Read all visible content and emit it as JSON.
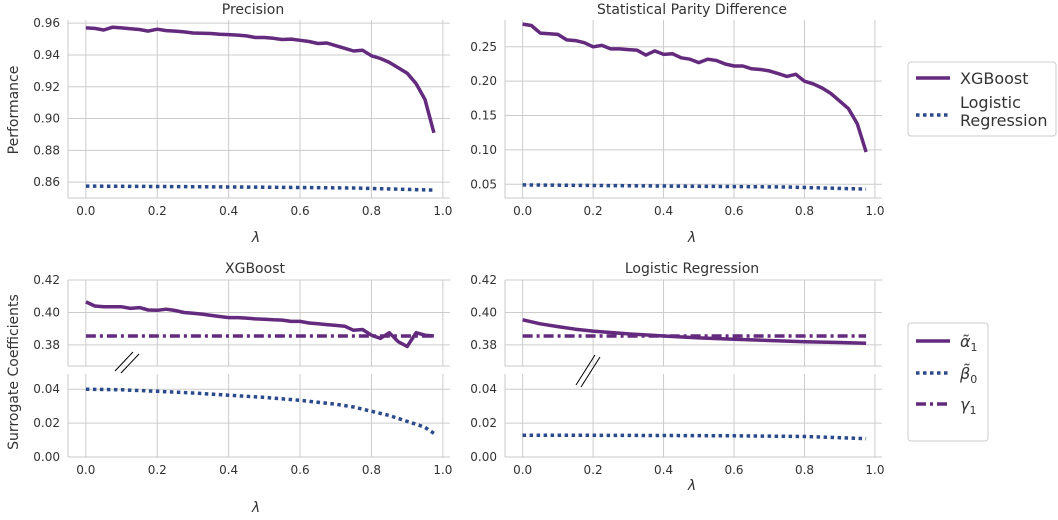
{
  "colors": {
    "xgb": "#632A7E",
    "lr": "#2B4A8C",
    "gamma": "#632A7E"
  },
  "legend_top": {
    "xgb": "XGBoost",
    "lr_line1": "Logistic",
    "lr_line2": "Regression"
  },
  "legend_bottom": {
    "alpha": "α̃",
    "alpha_sub": "1",
    "beta": "β̃",
    "beta_sub": "0",
    "gamma": "γ",
    "gamma_sub": "1"
  },
  "chart_data": [
    {
      "type": "line",
      "title": "Precision",
      "xlabel": "λ",
      "ylabel": "Performance",
      "xlim": [
        -0.05,
        1.02
      ],
      "ylim": [
        0.85,
        0.962
      ],
      "xticks": [
        "0.0",
        "0.2",
        "0.4",
        "0.6",
        "0.8",
        "1.0"
      ],
      "yticks": [
        "0.86",
        "0.88",
        "0.90",
        "0.92",
        "0.94",
        "0.96"
      ],
      "grid": true,
      "series": [
        {
          "name": "XGBoost",
          "x": [
            0,
            0.025,
            0.05,
            0.075,
            0.1,
            0.125,
            0.15,
            0.175,
            0.2,
            0.225,
            0.25,
            0.275,
            0.3,
            0.325,
            0.35,
            0.375,
            0.4,
            0.425,
            0.45,
            0.475,
            0.5,
            0.525,
            0.55,
            0.575,
            0.6,
            0.625,
            0.65,
            0.675,
            0.7,
            0.725,
            0.75,
            0.775,
            0.8,
            0.825,
            0.85,
            0.875,
            0.9,
            0.925,
            0.95,
            0.975
          ],
          "y": [
            0.957,
            0.9567,
            0.9557,
            0.9575,
            0.957,
            0.9565,
            0.956,
            0.955,
            0.9562,
            0.9553,
            0.955,
            0.9545,
            0.9538,
            0.9537,
            0.9535,
            0.953,
            0.9528,
            0.9525,
            0.952,
            0.951,
            0.951,
            0.9505,
            0.9497,
            0.95,
            0.9492,
            0.9485,
            0.9472,
            0.9475,
            0.9458,
            0.9442,
            0.9425,
            0.943,
            0.9395,
            0.9378,
            0.9353,
            0.932,
            0.9285,
            0.922,
            0.912,
            0.891
          ]
        },
        {
          "name": "Logistic Regression",
          "x": [
            0,
            0.25,
            0.5,
            0.75,
            0.975
          ],
          "y": [
            0.8575,
            0.8572,
            0.8568,
            0.8563,
            0.855
          ]
        }
      ]
    },
    {
      "type": "line",
      "title": "Statistical Parity Difference",
      "xlabel": "λ",
      "ylabel": "",
      "xlim": [
        -0.05,
        1.02
      ],
      "ylim": [
        0.03,
        0.289
      ],
      "xticks": [
        "0.0",
        "0.2",
        "0.4",
        "0.6",
        "0.8",
        "1.0"
      ],
      "yticks": [
        "0.05",
        "0.10",
        "0.15",
        "0.20",
        "0.25"
      ],
      "grid": true,
      "series": [
        {
          "name": "XGBoost",
          "x": [
            0,
            0.025,
            0.05,
            0.075,
            0.1,
            0.125,
            0.15,
            0.175,
            0.2,
            0.225,
            0.25,
            0.275,
            0.3,
            0.325,
            0.35,
            0.375,
            0.4,
            0.425,
            0.45,
            0.475,
            0.5,
            0.525,
            0.55,
            0.575,
            0.6,
            0.625,
            0.65,
            0.675,
            0.7,
            0.725,
            0.75,
            0.775,
            0.8,
            0.825,
            0.85,
            0.875,
            0.9,
            0.925,
            0.95,
            0.975
          ],
          "y": [
            0.283,
            0.281,
            0.27,
            0.269,
            0.268,
            0.26,
            0.259,
            0.256,
            0.25,
            0.252,
            0.247,
            0.247,
            0.246,
            0.245,
            0.238,
            0.244,
            0.239,
            0.24,
            0.234,
            0.232,
            0.227,
            0.232,
            0.23,
            0.225,
            0.222,
            0.222,
            0.218,
            0.217,
            0.215,
            0.211,
            0.207,
            0.21,
            0.2,
            0.196,
            0.19,
            0.182,
            0.171,
            0.16,
            0.138,
            0.097
          ]
        },
        {
          "name": "Logistic Regression",
          "x": [
            0,
            0.25,
            0.5,
            0.75,
            0.975
          ],
          "y": [
            0.049,
            0.048,
            0.047,
            0.046,
            0.043
          ]
        }
      ]
    },
    {
      "type": "line",
      "title": "XGBoost",
      "xlabel": "λ",
      "ylabel": "Surrogate Coefficients",
      "broken_axis": true,
      "upper": {
        "ylim": [
          0.367,
          0.42
        ],
        "yticks": [
          "0.38",
          "0.40",
          "0.42"
        ]
      },
      "lower": {
        "ylim": [
          0.0,
          0.049
        ],
        "yticks": [
          "0.00",
          "0.02",
          "0.04"
        ]
      },
      "xlim": [
        -0.05,
        1.02
      ],
      "xticks": [
        "0.0",
        "0.2",
        "0.4",
        "0.6",
        "0.8",
        "1.0"
      ],
      "grid": true,
      "series": [
        {
          "name": "α̃1",
          "x": [
            0,
            0.025,
            0.05,
            0.075,
            0.1,
            0.125,
            0.15,
            0.175,
            0.2,
            0.225,
            0.25,
            0.275,
            0.3,
            0.325,
            0.35,
            0.375,
            0.4,
            0.425,
            0.45,
            0.475,
            0.5,
            0.525,
            0.55,
            0.575,
            0.6,
            0.625,
            0.65,
            0.675,
            0.7,
            0.725,
            0.75,
            0.775,
            0.8,
            0.825,
            0.85,
            0.875,
            0.9,
            0.925,
            0.95,
            0.975
          ],
          "y": [
            0.4065,
            0.404,
            0.4035,
            0.4035,
            0.4035,
            0.4025,
            0.403,
            0.4015,
            0.4013,
            0.402,
            0.4012,
            0.4,
            0.3995,
            0.399,
            0.3982,
            0.3975,
            0.3968,
            0.3968,
            0.3965,
            0.396,
            0.3958,
            0.3955,
            0.3953,
            0.3945,
            0.3945,
            0.3935,
            0.393,
            0.3925,
            0.392,
            0.3915,
            0.389,
            0.3895,
            0.386,
            0.384,
            0.3875,
            0.382,
            0.379,
            0.3875,
            0.386,
            0.3855
          ]
        },
        {
          "name": "β̃0",
          "x": [
            0,
            0.1,
            0.2,
            0.3,
            0.4,
            0.5,
            0.6,
            0.7,
            0.75,
            0.8,
            0.85,
            0.9,
            0.93,
            0.95,
            0.975
          ],
          "y": [
            0.04,
            0.0397,
            0.0388,
            0.0378,
            0.0365,
            0.0352,
            0.0335,
            0.0312,
            0.0295,
            0.027,
            0.0245,
            0.021,
            0.019,
            0.0175,
            0.014
          ]
        },
        {
          "name": "γ1",
          "x": [
            0,
            0.975
          ],
          "y": [
            0.3855,
            0.3855
          ]
        }
      ]
    },
    {
      "type": "line",
      "title": "Logistic Regression",
      "xlabel": "λ",
      "ylabel": "",
      "broken_axis": true,
      "upper": {
        "ylim": [
          0.367,
          0.42
        ],
        "yticks": [
          "0.38",
          "0.40",
          "0.42"
        ]
      },
      "lower": {
        "ylim": [
          0.0,
          0.049
        ],
        "yticks": [
          "0.00",
          "0.02",
          "0.04"
        ]
      },
      "xlim": [
        -0.05,
        1.02
      ],
      "xticks": [
        "0.0",
        "0.2",
        "0.4",
        "0.6",
        "0.8",
        "1.0"
      ],
      "grid": true,
      "series": [
        {
          "name": "α̃1",
          "x": [
            0,
            0.05,
            0.1,
            0.15,
            0.2,
            0.3,
            0.4,
            0.5,
            0.6,
            0.7,
            0.8,
            0.9,
            0.975
          ],
          "y": [
            0.3955,
            0.393,
            0.3913,
            0.3897,
            0.3885,
            0.3868,
            0.3855,
            0.3843,
            0.3835,
            0.3827,
            0.382,
            0.3815,
            0.381
          ]
        },
        {
          "name": "β̃0",
          "x": [
            0,
            0.2,
            0.4,
            0.6,
            0.8,
            0.975
          ],
          "y": [
            0.0128,
            0.0128,
            0.0127,
            0.0125,
            0.0121,
            0.0108
          ]
        },
        {
          "name": "γ1",
          "x": [
            0,
            0.975
          ],
          "y": [
            0.3855,
            0.3855
          ]
        }
      ]
    }
  ]
}
